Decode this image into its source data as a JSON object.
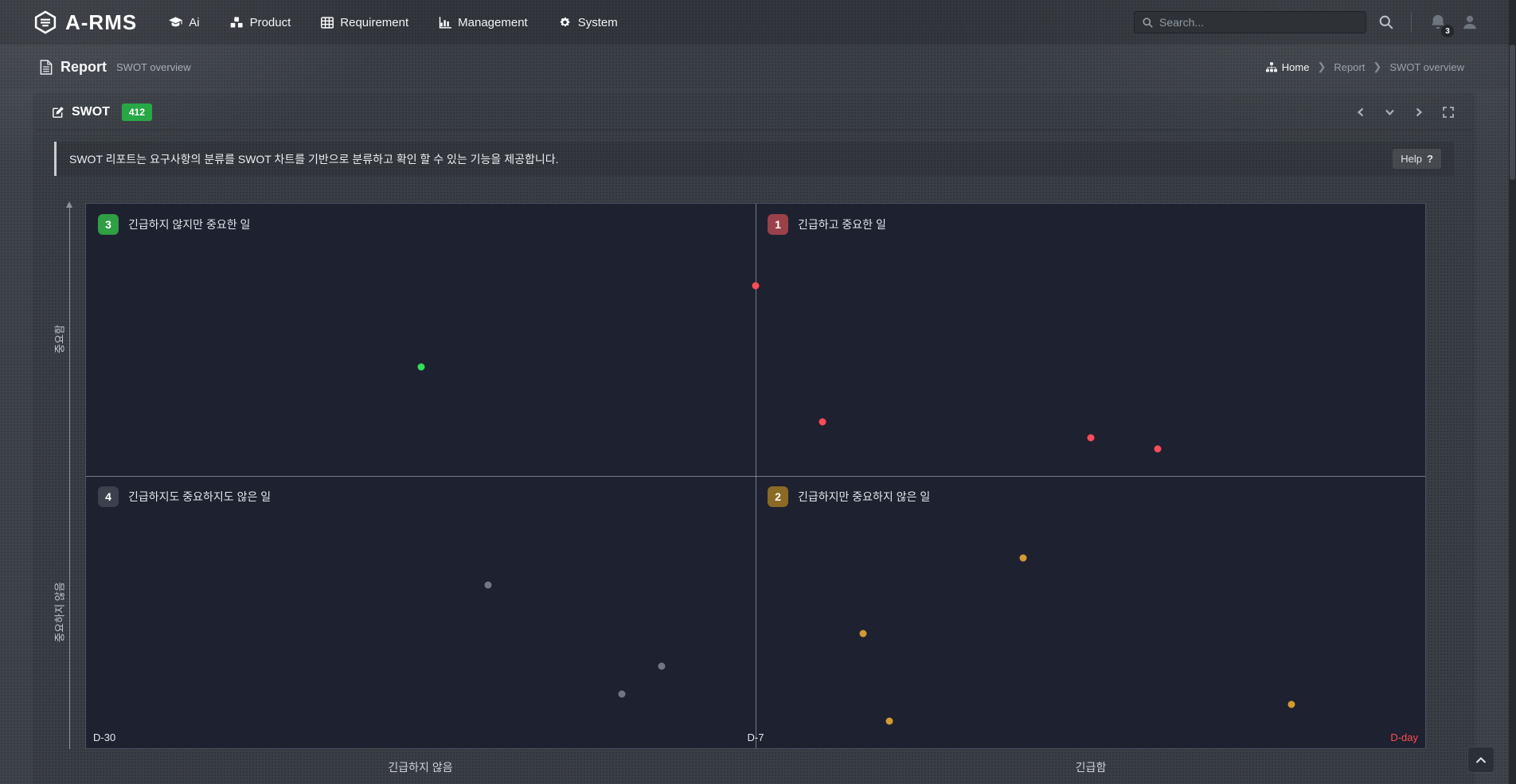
{
  "app": {
    "logo_text": "A-RMS"
  },
  "topbar": {
    "nav_items": [
      {
        "label": "Ai",
        "icon": "graduation-cap-icon"
      },
      {
        "label": "Product",
        "icon": "cubes-icon"
      },
      {
        "label": "Requirement",
        "icon": "table-icon"
      },
      {
        "label": "Management",
        "icon": "bar-chart-icon"
      },
      {
        "label": "System",
        "icon": "cogs-icon"
      }
    ],
    "search": {
      "placeholder": "Search..."
    },
    "notification_count": "3"
  },
  "page_header": {
    "title": "Report",
    "subtitle": "SWOT overview",
    "breadcrumb": [
      {
        "label": "Home"
      },
      {
        "label": "Report"
      },
      {
        "label": "SWOT overview"
      }
    ]
  },
  "panel": {
    "title": "SWOT",
    "count_badge": "412",
    "description": "SWOT 리포트는 요구사항의 분류를 SWOT 차트를 기반으로 분류하고 확인 할 수 있는 기능을 제공합니다.",
    "help_label": "Help",
    "help_glyph": "?"
  },
  "chart_data": {
    "type": "scatter",
    "title": "SWOT / Eisenhower quadrant chart",
    "background": "#1e2130",
    "quadrants": [
      {
        "num": "1",
        "label": "긴급하고 중요한 일",
        "badge_color": "#9b4149",
        "position": "top-right"
      },
      {
        "num": "2",
        "label": "긴급하지만 중요하지 않은 일",
        "badge_color": "#8a6a25",
        "position": "bottom-right"
      },
      {
        "num": "3",
        "label": "긴급하지 않지만 중요한 일",
        "badge_color": "#2f9e44",
        "position": "top-left"
      },
      {
        "num": "4",
        "label": "긴급하지도 중요하지도 않은 일",
        "badge_color": "#3d414d",
        "position": "bottom-left"
      }
    ],
    "axes": {
      "y_top": "중요함",
      "y_bottom": "중요하지 않음",
      "x_left": "긴급하지 않음",
      "x_right": "긴급함"
    },
    "time_markers": {
      "left": "D-30",
      "center": "D-7",
      "right": "D-day",
      "right_color": "#ff4d52"
    },
    "series": [
      {
        "name": "urgent-important",
        "color": "#ff4a57",
        "points": [
          {
            "x": 50,
            "y": 15
          },
          {
            "x": 55,
            "y": 40
          },
          {
            "x": 75,
            "y": 43
          },
          {
            "x": 80,
            "y": 45
          }
        ]
      },
      {
        "name": "not-urgent-important",
        "color": "#31e056",
        "points": [
          {
            "x": 25,
            "y": 30
          }
        ]
      },
      {
        "name": "not-urgent-not-important",
        "color": "#707684",
        "points": [
          {
            "x": 30,
            "y": 70
          },
          {
            "x": 43,
            "y": 85
          },
          {
            "x": 40,
            "y": 90
          }
        ]
      },
      {
        "name": "urgent-not-important",
        "color": "#d39a2e",
        "points": [
          {
            "x": 70,
            "y": 65
          },
          {
            "x": 58,
            "y": 79
          },
          {
            "x": 60,
            "y": 95
          },
          {
            "x": 90,
            "y": 92
          }
        ]
      }
    ],
    "note": "point x/y are percentages of chart area, y measured from top"
  }
}
